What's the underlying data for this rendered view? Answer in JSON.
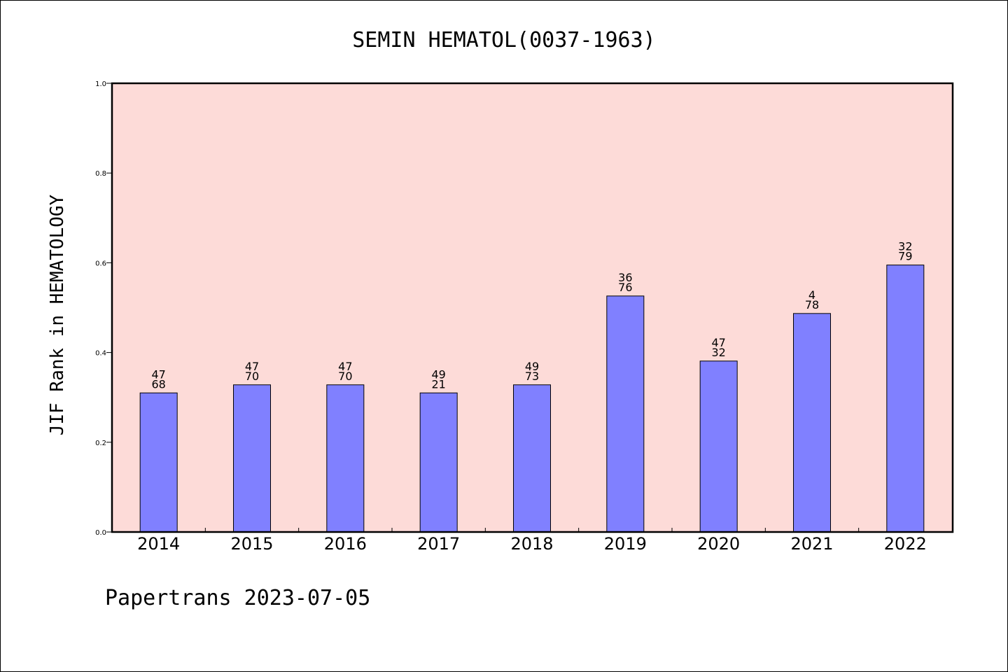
{
  "chart_data": {
    "type": "bar",
    "title": "SEMIN HEMATOL(0037-1963)",
    "xlabel": "",
    "ylabel": "JIF Rank in HEMATOLOGY",
    "ylim": [
      0,
      1.0
    ],
    "yticks": [
      "0.0",
      "0.2",
      "0.4",
      "0.6",
      "0.8",
      "1.0"
    ],
    "categories": [
      "2014",
      "2015",
      "2016",
      "2017",
      "2018",
      "2019",
      "2020",
      "2021",
      "2022"
    ],
    "values": [
      0.31,
      0.328,
      0.328,
      0.31,
      0.328,
      0.526,
      0.381,
      0.487,
      0.595
    ],
    "labels": [
      [
        "47",
        "68"
      ],
      [
        "47",
        "70"
      ],
      [
        "47",
        "70"
      ],
      [
        "49",
        "21"
      ],
      [
        "49",
        "73"
      ],
      [
        "36",
        "76"
      ],
      [
        "47",
        "32"
      ],
      [
        "4",
        "78"
      ],
      [
        "32",
        "79"
      ]
    ],
    "grid": false,
    "colors": {
      "plot_background": "#fddbd8",
      "bar_fill": "#8080ff",
      "bar_stroke": "#000000"
    }
  },
  "footer": {
    "text": "Papertrans 2023-07-05"
  }
}
